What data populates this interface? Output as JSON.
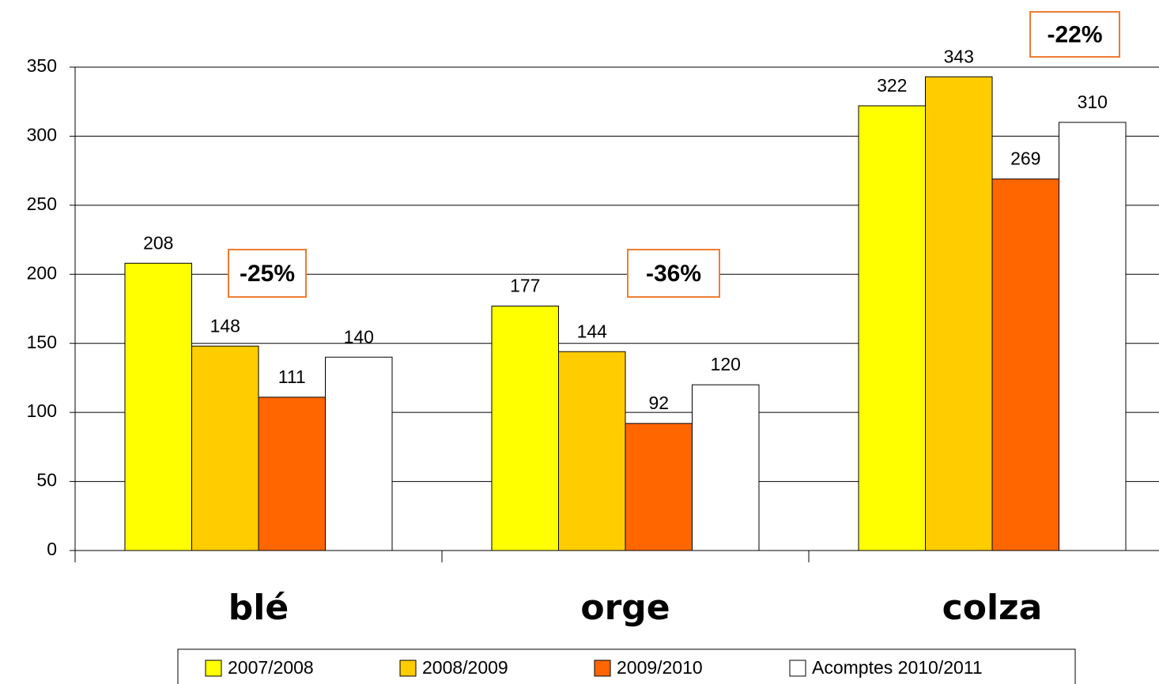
{
  "chart_data": {
    "type": "bar",
    "categories": [
      "blé",
      "orge",
      "colza"
    ],
    "series": [
      {
        "name": "2007/2008",
        "color": "#ffff00",
        "values": [
          208,
          177,
          322
        ]
      },
      {
        "name": "2008/2009",
        "color": "#ffcc00",
        "values": [
          148,
          144,
          343
        ]
      },
      {
        "name": "2009/2010",
        "color": "#ff6600",
        "values": [
          111,
          92,
          269
        ]
      },
      {
        "name": "Acomptes 2010/2011",
        "color": "#ffffff",
        "values": [
          140,
          120,
          310
        ]
      }
    ],
    "annotations": [
      "-25%",
      "-36%",
      "-22%"
    ],
    "ylim": [
      0,
      350
    ],
    "yticks": [
      0,
      50,
      100,
      150,
      200,
      250,
      300,
      350
    ],
    "grid": true,
    "legend": "bottom"
  }
}
